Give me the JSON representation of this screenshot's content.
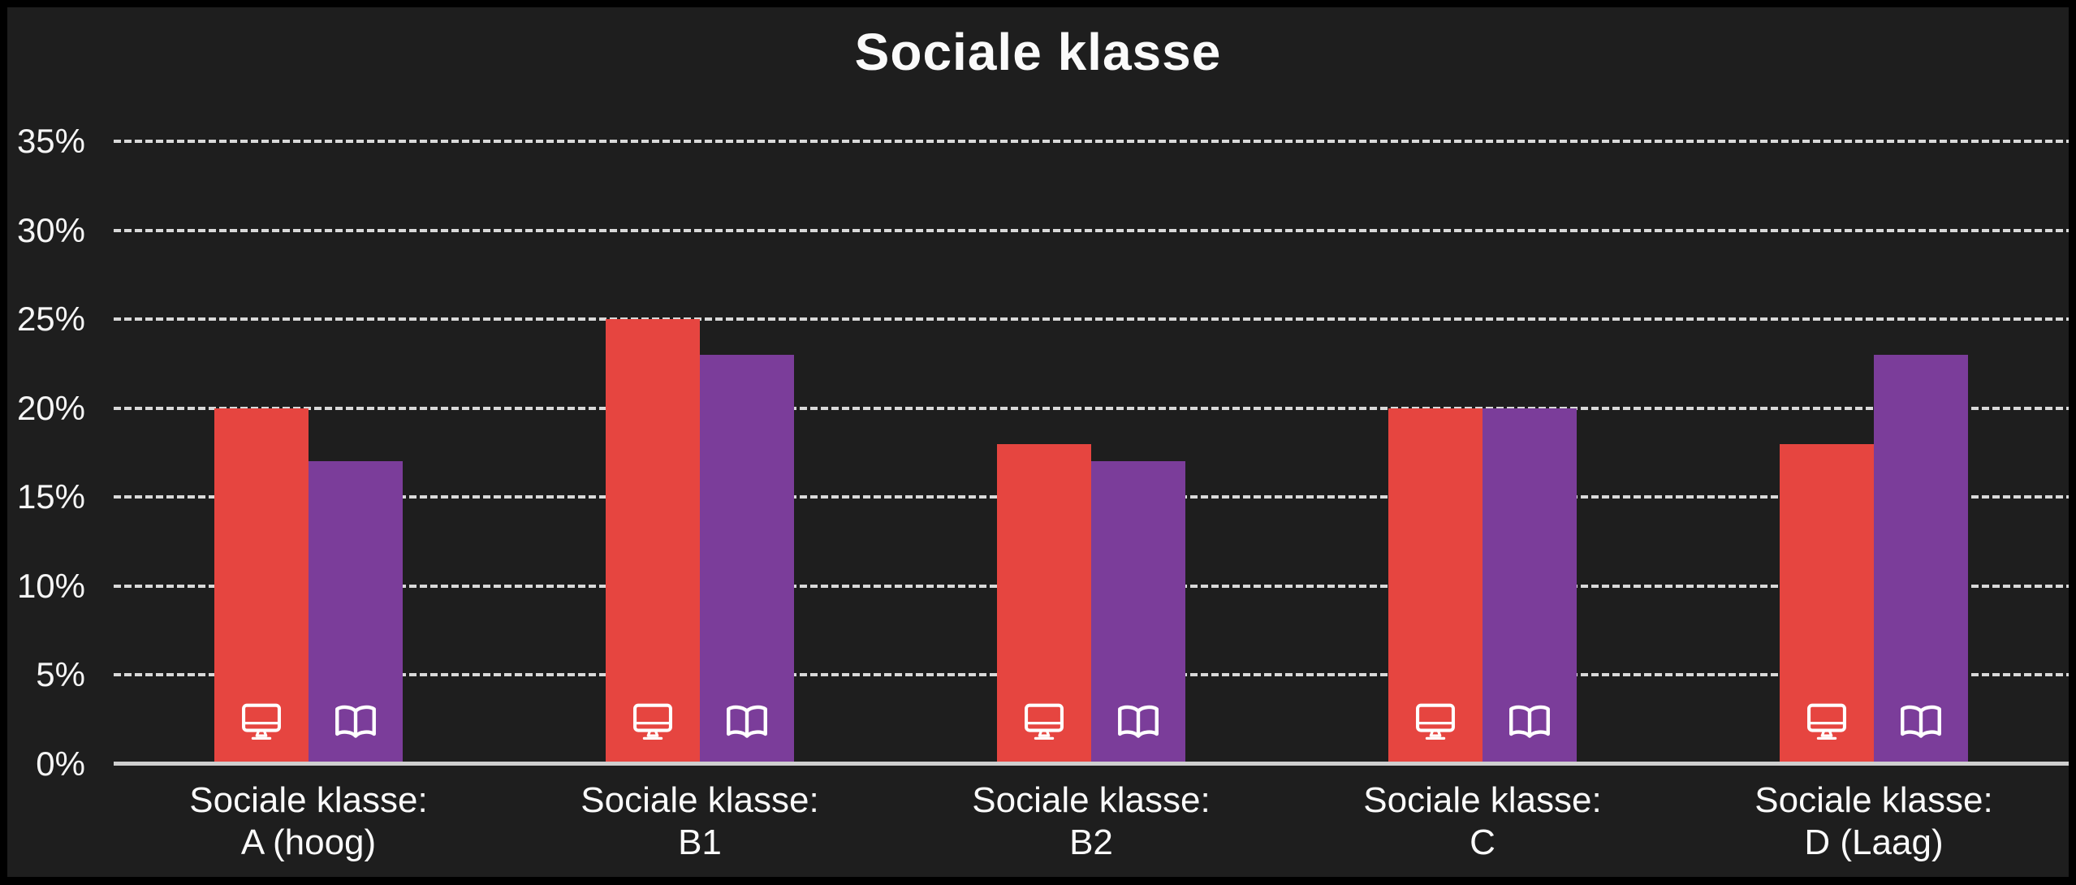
{
  "chart_data": {
    "type": "bar",
    "title": "Sociale klasse",
    "categories": [
      {
        "line1": "Sociale klasse:",
        "line2": "A (hoog)"
      },
      {
        "line1": "Sociale klasse:",
        "line2": "B1"
      },
      {
        "line1": "Sociale klasse:",
        "line2": "B2"
      },
      {
        "line1": "Sociale klasse:",
        "line2": "C"
      },
      {
        "line1": "Sociale klasse:",
        "line2": "D (Laag)"
      }
    ],
    "series": [
      {
        "name": "screen",
        "icon": "monitor-icon",
        "color": "#e64540",
        "values": [
          20,
          25,
          18,
          20,
          18
        ]
      },
      {
        "name": "book",
        "icon": "open-book-icon",
        "color": "#7b3d9a",
        "values": [
          17,
          23,
          17,
          20,
          23
        ]
      }
    ],
    "y_axis": {
      "ticks": [
        "35%",
        "30%",
        "25%",
        "20%",
        "15%",
        "10%",
        "5%",
        "0%"
      ],
      "min": 0,
      "max": 35,
      "unit": "%"
    },
    "grid": {
      "orientation": "horizontal",
      "style": "dashed",
      "color": "#d9d9d9",
      "baseline_color": "#cfcfcf"
    },
    "background": "#1e1e1e",
    "legend_position": "none"
  }
}
